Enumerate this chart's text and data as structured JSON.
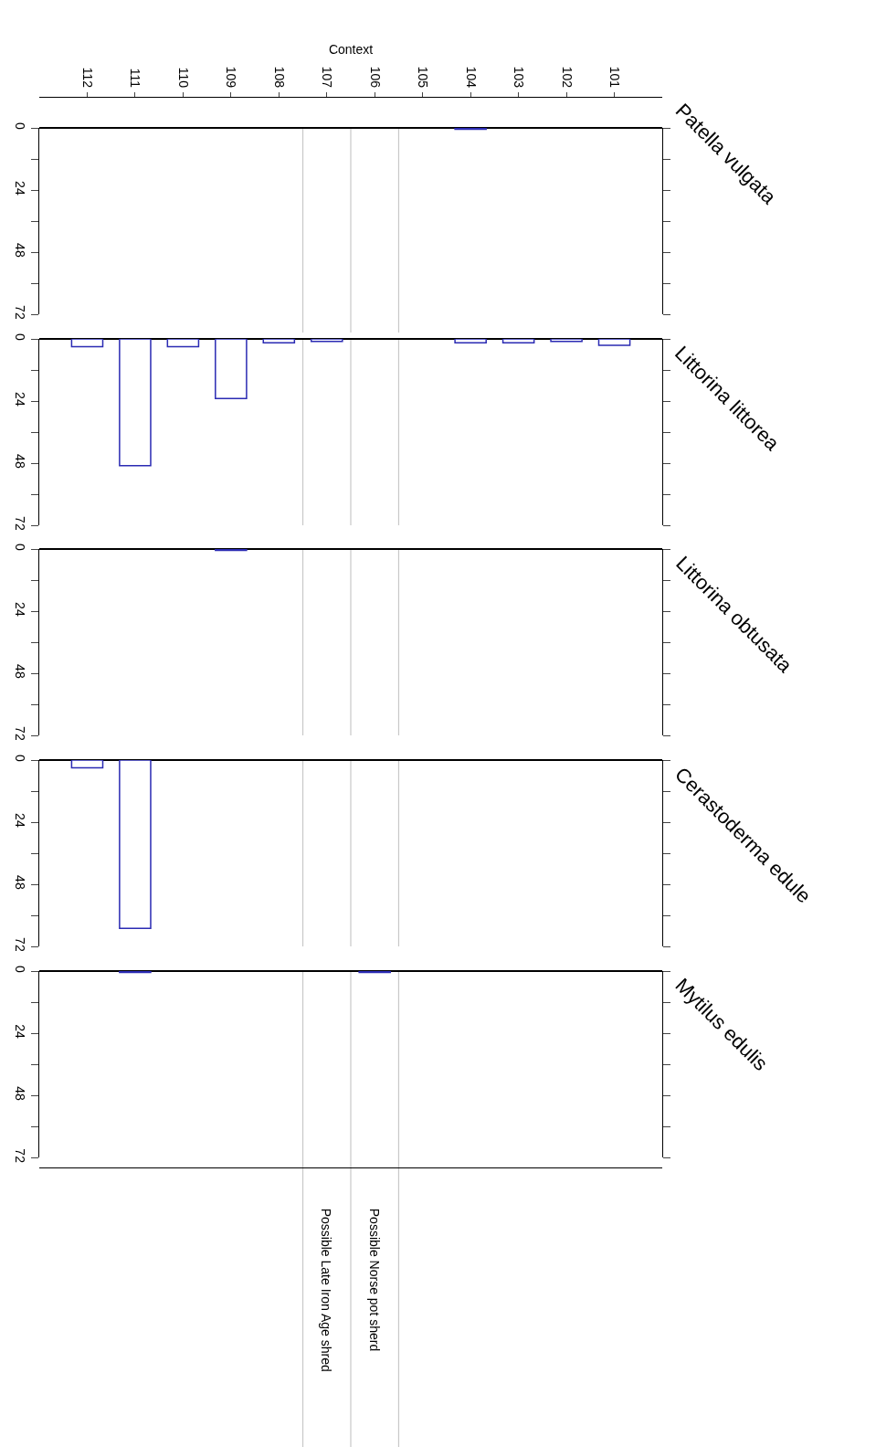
{
  "chart_data": [
    {
      "type": "bar",
      "title": "Patella vulgata",
      "xlabel": "Context",
      "x": [
        104
      ],
      "values": [
        0.5
      ],
      "color": "#2b2bb3",
      "xlim": [
        113,
        100
      ],
      "xticks": [
        112,
        111,
        110,
        109,
        108,
        107,
        106,
        105,
        104,
        103,
        102,
        101
      ],
      "ylim": [
        72,
        0
      ],
      "yticks": [
        0,
        {
          "value": 12,
          "label": null
        },
        24,
        {
          "value": 36,
          "label": null
        },
        48,
        {
          "value": 60,
          "label": null
        },
        72
      ],
      "ref_lines": [
        {
          "axis": "x",
          "value": 107.5,
          "color": "#c8c8c8"
        },
        {
          "axis": "x",
          "value": 106.5,
          "color": "#c8c8c8"
        },
        {
          "axis": "x",
          "value": 105.5,
          "color": "#c8c8c8"
        }
      ]
    },
    {
      "type": "bar",
      "title": "Littorina littorea",
      "x": [
        112,
        111,
        110,
        109,
        108,
        107,
        104,
        103,
        102,
        101
      ],
      "values": [
        3,
        49,
        3,
        23,
        1.5,
        1,
        1.5,
        1.5,
        1,
        2.5
      ],
      "color": "#2b2bb3",
      "xlim": [
        113,
        100
      ],
      "ylim": [
        72,
        0
      ],
      "yticks": [
        0,
        {
          "value": 12,
          "label": null
        },
        24,
        {
          "value": 36,
          "label": null
        },
        48,
        {
          "value": 60,
          "label": null
        },
        72
      ],
      "tick_labels": "y",
      "ref_lines": [
        {
          "axis": "x",
          "value": 107.5,
          "color": "#c8c8c8"
        },
        {
          "axis": "x",
          "value": 106.5,
          "color": "#c8c8c8"
        },
        {
          "axis": "x",
          "value": 105.5,
          "color": "#c8c8c8"
        }
      ]
    },
    {
      "type": "bar",
      "title": "Littorina obtusata",
      "x": [
        109
      ],
      "values": [
        0.5
      ],
      "color": "#2b2bb3",
      "xlim": [
        113,
        100
      ],
      "ylim": [
        72,
        0
      ],
      "yticks": [
        0,
        {
          "value": 12,
          "label": null
        },
        24,
        {
          "value": 36,
          "label": null
        },
        48,
        {
          "value": 60,
          "label": null
        },
        72
      ],
      "tick_labels": "y",
      "ref_lines": [
        {
          "axis": "x",
          "value": 107.5,
          "color": "#c8c8c8"
        },
        {
          "axis": "x",
          "value": 106.5,
          "color": "#c8c8c8"
        },
        {
          "axis": "x",
          "value": 105.5,
          "color": "#c8c8c8"
        }
      ]
    },
    {
      "type": "bar",
      "title": "Cerastoderma edule",
      "x": [
        112,
        111
      ],
      "values": [
        3,
        65
      ],
      "color": "#2b2bb3",
      "xlim": [
        113,
        100
      ],
      "ylim": [
        72,
        0
      ],
      "yticks": [
        0,
        {
          "value": 12,
          "label": null
        },
        24,
        {
          "value": 36,
          "label": null
        },
        48,
        {
          "value": 60,
          "label": null
        },
        72
      ],
      "tick_labels": "y",
      "ref_lines": [
        {
          "axis": "x",
          "value": 107.5,
          "color": "#c8c8c8"
        },
        {
          "axis": "x",
          "value": 106.5,
          "color": "#c8c8c8"
        },
        {
          "axis": "x",
          "value": 105.5,
          "color": "#c8c8c8"
        }
      ]
    },
    {
      "type": "bar",
      "title": "Mytilus edulis",
      "x": [
        111,
        106
      ],
      "values": [
        0.5,
        0.5
      ],
      "color": "#2b2bb3",
      "xlim": [
        113,
        100
      ],
      "ylim": [
        72,
        0
      ],
      "yticks": [
        0,
        {
          "value": 12,
          "label": null
        },
        24,
        {
          "value": 36,
          "label": null
        },
        48,
        {
          "value": 60,
          "label": null
        },
        72
      ],
      "tick_labels": "y",
      "ref_lines": [
        {
          "axis": "x",
          "value": 107.5,
          "color": "#c8c8c8"
        },
        {
          "axis": "x",
          "value": 106.5,
          "color": "#c8c8c8"
        },
        {
          "axis": "x",
          "value": 105.5,
          "color": "#c8c8c8"
        }
      ],
      "annotations": [
        "Possible Late Iron Age shred",
        "Possible Norse pot sherd"
      ]
    }
  ]
}
